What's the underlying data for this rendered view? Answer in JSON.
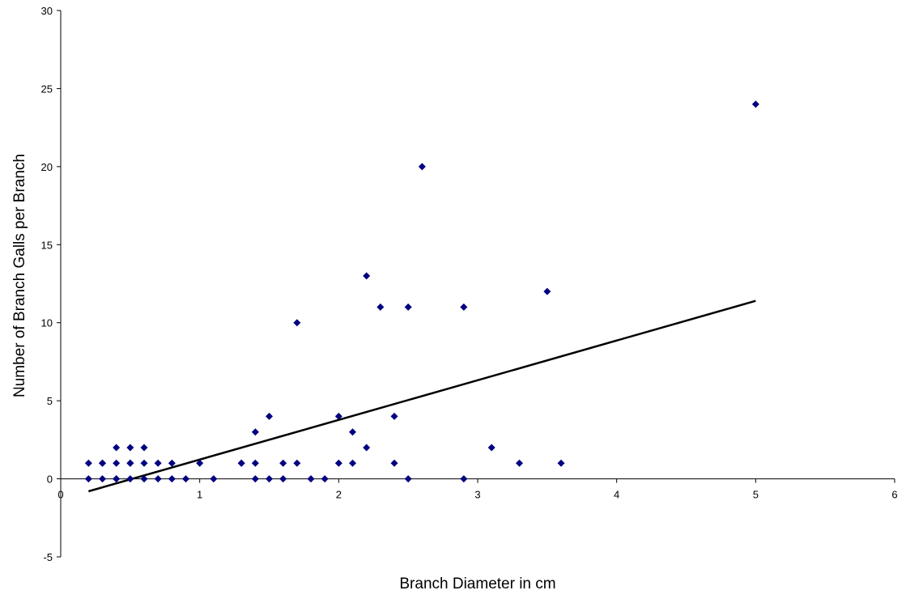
{
  "chart_data": {
    "type": "scatter",
    "title": "",
    "xlabel": "Branch Diameter in cm",
    "ylabel": "Number of Branch Galls per Branch",
    "xlim": [
      0,
      6
    ],
    "ylim": [
      -5,
      30
    ],
    "x_ticks": [
      0,
      1,
      2,
      3,
      4,
      5,
      6
    ],
    "y_ticks": [
      -5,
      0,
      5,
      10,
      15,
      20,
      25,
      30
    ],
    "grid": false,
    "legend": "none",
    "marker": "diamond",
    "marker_color": "#000080",
    "series": [
      {
        "points": [
          [
            0.2,
            1
          ],
          [
            0.2,
            0
          ],
          [
            0.3,
            1
          ],
          [
            0.3,
            1
          ],
          [
            0.3,
            0
          ],
          [
            0.4,
            2
          ],
          [
            0.4,
            1
          ],
          [
            0.4,
            0
          ],
          [
            0.4,
            0
          ],
          [
            0.5,
            2
          ],
          [
            0.5,
            1
          ],
          [
            0.5,
            1
          ],
          [
            0.5,
            0
          ],
          [
            0.6,
            2
          ],
          [
            0.6,
            1
          ],
          [
            0.6,
            0
          ],
          [
            0.7,
            1
          ],
          [
            0.7,
            0
          ],
          [
            0.8,
            1
          ],
          [
            0.8,
            0
          ],
          [
            0.9,
            0
          ],
          [
            1.0,
            1
          ],
          [
            1.1,
            0
          ],
          [
            1.3,
            1
          ],
          [
            1.3,
            1
          ],
          [
            1.4,
            3
          ],
          [
            1.4,
            1
          ],
          [
            1.4,
            0
          ],
          [
            1.5,
            4
          ],
          [
            1.5,
            0
          ],
          [
            1.6,
            1
          ],
          [
            1.6,
            0
          ],
          [
            1.7,
            10
          ],
          [
            1.7,
            1
          ],
          [
            1.8,
            0
          ],
          [
            1.9,
            0
          ],
          [
            2.0,
            4
          ],
          [
            2.0,
            1
          ],
          [
            2.1,
            3
          ],
          [
            2.1,
            1
          ],
          [
            2.2,
            13
          ],
          [
            2.2,
            2
          ],
          [
            2.3,
            11
          ],
          [
            2.4,
            4
          ],
          [
            2.4,
            1
          ],
          [
            2.5,
            11
          ],
          [
            2.5,
            0
          ],
          [
            2.6,
            20
          ],
          [
            2.9,
            11
          ],
          [
            2.9,
            0
          ],
          [
            3.1,
            2
          ],
          [
            3.3,
            1
          ],
          [
            3.5,
            12
          ],
          [
            3.6,
            1
          ],
          [
            5.0,
            24
          ]
        ]
      }
    ],
    "trendline": {
      "type": "linear",
      "x_range": [
        0.2,
        5.0
      ],
      "y_values": [
        -0.8,
        11.4
      ],
      "color": "#000000"
    }
  }
}
